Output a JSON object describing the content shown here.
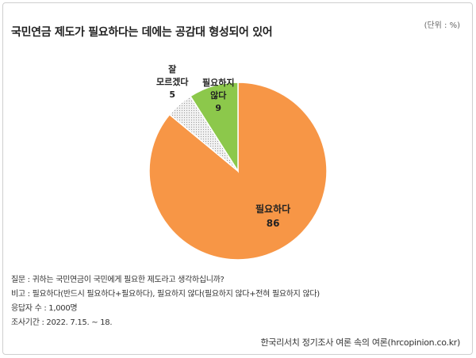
{
  "title": "국민연금 제도가 필요하다는 데에는 공감대 형성되어 있어",
  "unit": "(단위 : %)",
  "chart_data": {
    "type": "pie",
    "title": "국민연금 제도가 필요하다는 데에는 공감대 형성되어 있어",
    "slices": [
      {
        "label": "필요하다",
        "value": 86,
        "color": "#F79646"
      },
      {
        "label": "잘 모르겠다",
        "value": 5,
        "color": "#E6E6E6"
      },
      {
        "label": "필요하지 않다",
        "value": 9,
        "color": "#8CC84B"
      }
    ]
  },
  "labels": {
    "necessary": {
      "line1": "필요하다",
      "value": "86"
    },
    "unknown": {
      "line1": "잘",
      "line2": "모르겠다",
      "value": "5"
    },
    "not_necessary": {
      "line1": "필요하지",
      "line2": "않다",
      "value": "9"
    }
  },
  "notes": {
    "question": "질문 :  귀하는 국민연금이 국민에게 필요한 제도라고 생각하십니까?",
    "remark": "비고 :  필요하다(반드시 필요하다+필요하다), 필요하지 않다(필요하지 않다+전혀 필요하지 않다)",
    "respondents": "응답자 수 : 1,000명",
    "period": "조사기간 : 2022. 7.15. ~ 18."
  },
  "source": "한국리서치 정기조사 여론 속의 여론(hrcopinion.co.kr)"
}
